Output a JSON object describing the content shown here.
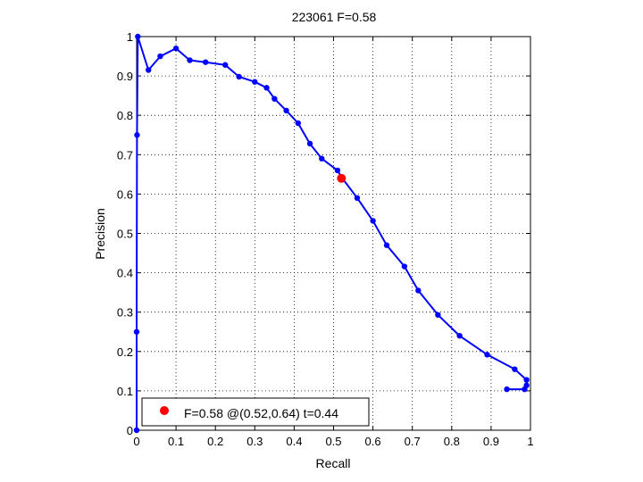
{
  "chart_data": {
    "type": "line",
    "title": "223061 F=0.58",
    "xlabel": "Recall",
    "ylabel": "Precision",
    "xlim": [
      0,
      1
    ],
    "ylim": [
      0,
      1
    ],
    "xticks": [
      "0",
      "0.1",
      "0.2",
      "0.3",
      "0.4",
      "0.5",
      "0.6",
      "0.7",
      "0.8",
      "0.9",
      "1"
    ],
    "yticks": [
      "0",
      "0.1",
      "0.2",
      "0.3",
      "0.4",
      "0.5",
      "0.6",
      "0.7",
      "0.8",
      "0.9",
      "1"
    ],
    "grid": true,
    "legend_position": "bottom-left",
    "series": [
      {
        "color": "#0000ff",
        "points": [
          [
            0.0,
            0.0
          ],
          [
            0.0,
            0.25
          ],
          [
            0.001,
            0.75
          ],
          [
            0.003,
            1.0
          ],
          [
            0.03,
            0.915
          ],
          [
            0.06,
            0.95
          ],
          [
            0.1,
            0.97
          ],
          [
            0.135,
            0.94
          ],
          [
            0.175,
            0.935
          ],
          [
            0.225,
            0.928
          ],
          [
            0.26,
            0.898
          ],
          [
            0.3,
            0.885
          ],
          [
            0.33,
            0.87
          ],
          [
            0.35,
            0.842
          ],
          [
            0.38,
            0.812
          ],
          [
            0.41,
            0.78
          ],
          [
            0.44,
            0.728
          ],
          [
            0.47,
            0.69
          ],
          [
            0.51,
            0.66
          ],
          [
            0.52,
            0.643
          ],
          [
            0.56,
            0.59
          ],
          [
            0.6,
            0.532
          ],
          [
            0.635,
            0.47
          ],
          [
            0.68,
            0.416
          ],
          [
            0.715,
            0.355
          ],
          [
            0.765,
            0.293
          ],
          [
            0.82,
            0.24
          ],
          [
            0.89,
            0.192
          ],
          [
            0.96,
            0.155
          ],
          [
            0.99,
            0.128
          ],
          [
            0.99,
            0.114
          ],
          [
            0.985,
            0.104
          ],
          [
            0.94,
            0.104
          ]
        ]
      }
    ],
    "best_point": {
      "recall": 0.52,
      "precision": 0.64,
      "color": "#ff0000",
      "label": "F=0.58 @(0.52,0.64) t=0.44"
    }
  }
}
